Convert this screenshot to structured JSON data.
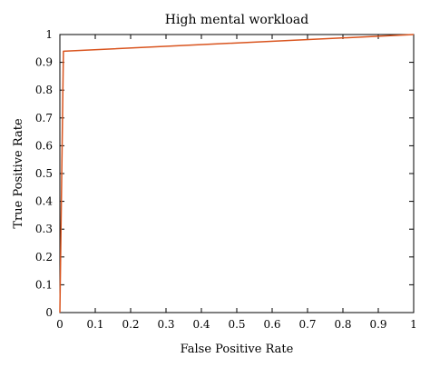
{
  "chart_data": {
    "type": "line",
    "title": "High mental workload",
    "xlabel": "False Positive Rate",
    "ylabel": "True Positive Rate",
    "xlim": [
      0,
      1
    ],
    "ylim": [
      0,
      1
    ],
    "grid": false,
    "xticks": [
      "0",
      "0.1",
      "0.2",
      "0.3",
      "0.4",
      "0.5",
      "0.6",
      "0.7",
      "0.8",
      "0.9",
      "1"
    ],
    "yticks": [
      "0",
      "0.1",
      "0.2",
      "0.3",
      "0.4",
      "0.5",
      "0.6",
      "0.7",
      "0.8",
      "0.9",
      "1"
    ],
    "series": [
      {
        "color": "#d9541e",
        "x": [
          0,
          0.01,
          1
        ],
        "y": [
          0,
          0.94,
          1
        ]
      }
    ]
  }
}
